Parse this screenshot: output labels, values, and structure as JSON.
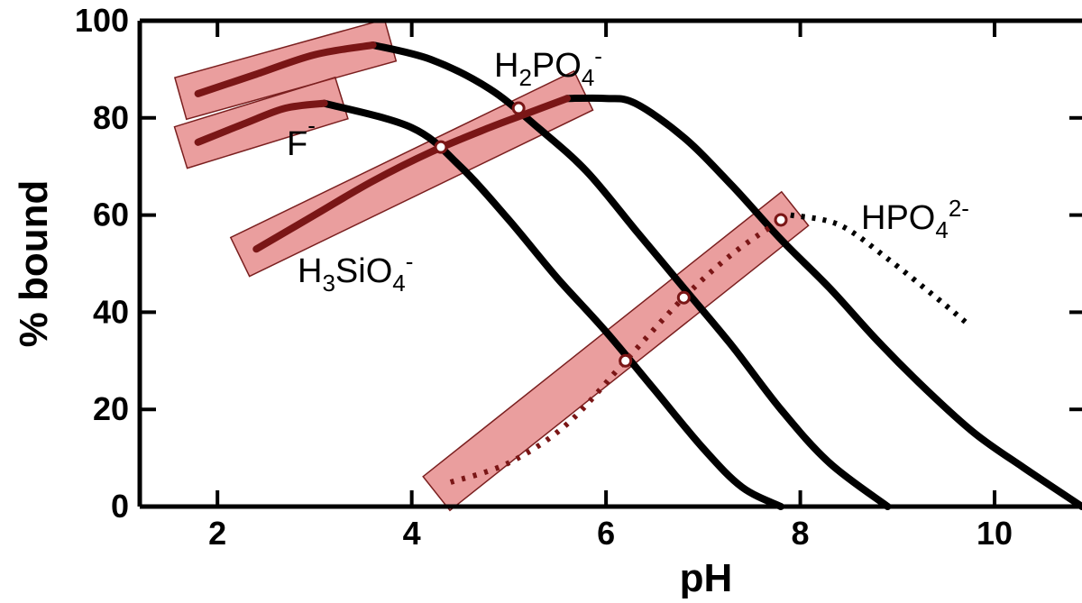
{
  "chart_data": {
    "type": "line",
    "xlabel": "pH",
    "ylabel": "% bound",
    "xlim": [
      1.2,
      10.9
    ],
    "ylim": [
      0,
      100
    ],
    "xticks": [
      2,
      4,
      6,
      8,
      10
    ],
    "yticks": [
      0,
      20,
      40,
      60,
      80,
      100
    ],
    "grid": false,
    "legend": "none",
    "series": [
      {
        "name": "F⁻",
        "label_parts": [
          "F",
          "-",
          ""
        ],
        "style": "solid",
        "color": "#000000",
        "points": [
          [
            3.1,
            83
          ],
          [
            4.0,
            78
          ],
          [
            4.5,
            70
          ],
          [
            5.0,
            59
          ],
          [
            5.5,
            47
          ],
          [
            6.0,
            36
          ],
          [
            6.5,
            24
          ],
          [
            7.0,
            12
          ],
          [
            7.4,
            4
          ],
          [
            7.8,
            0
          ]
        ]
      },
      {
        "name": "H₂PO₄⁻",
        "label_parts": [
          "H",
          "2",
          "PO",
          "4",
          "-"
        ],
        "style": "solid",
        "color": "#000000",
        "points": [
          [
            3.6,
            95
          ],
          [
            4.2,
            92
          ],
          [
            4.8,
            86
          ],
          [
            5.3,
            78
          ],
          [
            5.8,
            69
          ],
          [
            6.3,
            57
          ],
          [
            6.8,
            45
          ],
          [
            7.3,
            33
          ],
          [
            7.8,
            20
          ],
          [
            8.3,
            9
          ],
          [
            8.9,
            0
          ]
        ]
      },
      {
        "name": "H₃SiO₄⁻",
        "label_parts": [
          "H",
          "3",
          "SiO",
          "4",
          "-"
        ],
        "style": "solid",
        "color": "#000000",
        "points": [
          [
            5.6,
            84
          ],
          [
            6.0,
            84
          ],
          [
            6.3,
            83
          ],
          [
            6.8,
            76
          ],
          [
            7.3,
            66
          ],
          [
            7.8,
            55
          ],
          [
            8.3,
            45
          ],
          [
            8.8,
            34
          ],
          [
            9.3,
            24
          ],
          [
            9.8,
            15
          ],
          [
            10.3,
            8
          ],
          [
            10.9,
            0
          ]
        ]
      },
      {
        "name": "HPO₄²⁻",
        "label_parts": [
          "HPO",
          "4",
          "2-"
        ],
        "style": "dotted",
        "color": "#000000",
        "points": [
          [
            7.9,
            60
          ],
          [
            8.4,
            58
          ],
          [
            8.9,
            51
          ],
          [
            9.4,
            43
          ],
          [
            9.7,
            38
          ]
        ]
      }
    ],
    "annotations": [
      {
        "name": "left-edge-envelope",
        "style": "highlight",
        "color": "#d94f4f",
        "points": [
          [
            1.8,
            85
          ],
          [
            2.4,
            89
          ],
          [
            3.0,
            93
          ],
          [
            3.6,
            95
          ]
        ]
      },
      {
        "name": "left-edge-envelope",
        "style": "highlight",
        "color": "#d94f4f",
        "points": [
          [
            1.8,
            75
          ],
          [
            2.3,
            79
          ],
          [
            2.7,
            82
          ],
          [
            3.1,
            83
          ]
        ]
      },
      {
        "name": "left-edge-envelope",
        "style": "highlight",
        "color": "#d94f4f",
        "points": [
          [
            2.4,
            53
          ],
          [
            3.0,
            60
          ],
          [
            3.6,
            67
          ],
          [
            4.2,
            73
          ],
          [
            4.8,
            78
          ],
          [
            5.2,
            81
          ],
          [
            5.6,
            84
          ]
        ]
      },
      {
        "name": "crossing-line",
        "style": "highlight-dotted",
        "color": "#d94f4f",
        "points": [
          [
            4.4,
            5
          ],
          [
            5.0,
            9
          ],
          [
            5.6,
            17
          ],
          [
            6.2,
            30
          ],
          [
            6.8,
            43
          ],
          [
            7.3,
            52
          ],
          [
            7.8,
            59
          ]
        ]
      }
    ],
    "crossing_points": [
      [
        6.2,
        30
      ],
      [
        6.8,
        43
      ],
      [
        7.8,
        59
      ],
      [
        4.3,
        74
      ],
      [
        5.1,
        82
      ]
    ]
  }
}
